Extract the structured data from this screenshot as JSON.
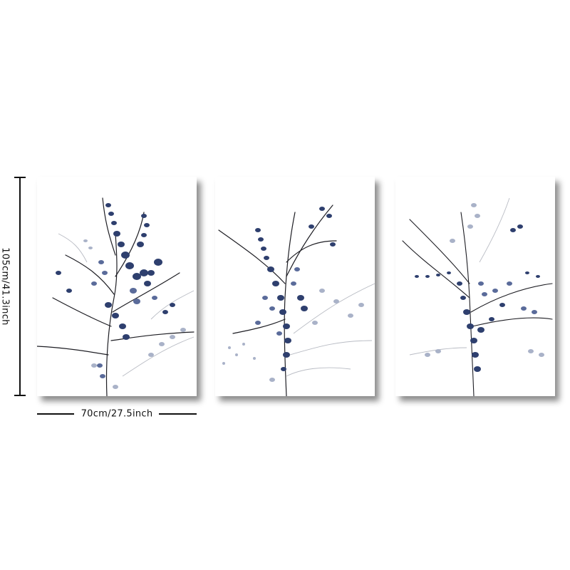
{
  "dimensions": {
    "height_label": "105cm/41.3inch",
    "width_label": "70cm/27.5inch"
  },
  "panels": [
    {
      "subject": "botanical-branch-print"
    },
    {
      "subject": "botanical-branch-print"
    },
    {
      "subject": "botanical-branch-print"
    }
  ],
  "colors": {
    "leaf_dark": "#2e3f6e",
    "leaf_mid": "#5a6b9a",
    "leaf_light": "#a9b2c8",
    "stem": "#1e1e24",
    "stem_light": "#b9bcc4"
  }
}
